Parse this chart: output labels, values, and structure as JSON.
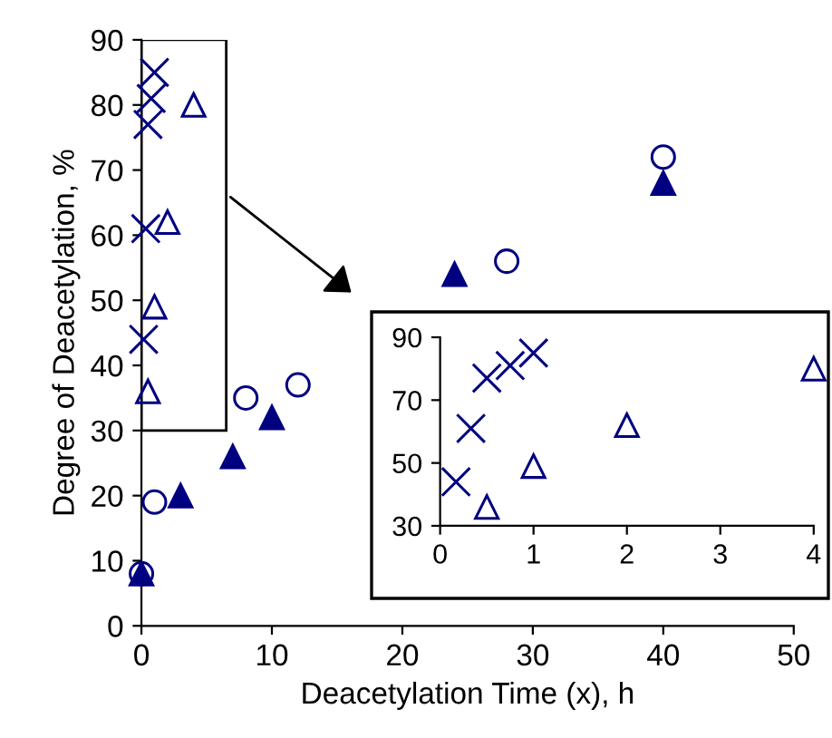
{
  "chart_data": [
    {
      "type": "scatter",
      "xlabel": "Deacetylation Time (x), h",
      "ylabel": "Degree of Deacetylation, %",
      "xlim": [
        0,
        50
      ],
      "ylim": [
        0,
        90
      ],
      "xticks": [
        0,
        10,
        20,
        30,
        40,
        50
      ],
      "yticks": [
        0,
        10,
        20,
        30,
        40,
        50,
        60,
        70,
        80,
        90
      ],
      "grid": false,
      "legend": false,
      "series": [
        {
          "color": "#000080",
          "marker": "cross",
          "x": [
            0.17,
            0.33,
            0.5,
            0.75,
            1
          ],
          "values": [
            44,
            61,
            77,
            81,
            85
          ]
        },
        {
          "color": "#000080",
          "marker": "triangle",
          "x": [
            0.5,
            1,
            2,
            4
          ],
          "values": [
            36,
            49,
            62,
            80
          ]
        },
        {
          "color": "#000080",
          "marker": "circle",
          "x": [
            0,
            1,
            8,
            12,
            28,
            40
          ],
          "values": [
            8,
            19,
            35,
            37,
            56,
            72
          ]
        },
        {
          "color": "#000080",
          "marker": "triangle",
          "x": [
            0,
            3,
            7,
            10,
            24,
            40
          ],
          "values": [
            8,
            20,
            26,
            32,
            54,
            68
          ]
        }
      ]
    },
    {
      "type": "scatter",
      "xlim": [
        0,
        4
      ],
      "ylim": [
        30,
        90
      ],
      "xticks": [
        0,
        1,
        2,
        3,
        4
      ],
      "yticks": [
        30,
        50,
        70,
        90
      ],
      "grid": false,
      "legend": false,
      "series": [
        {
          "color": "#000080",
          "marker": "cross",
          "x": [
            0.17,
            0.33,
            0.5,
            0.75,
            1
          ],
          "values": [
            44,
            61,
            77,
            81,
            85
          ]
        },
        {
          "color": "#000080",
          "marker": "triangle",
          "x": [
            0.5,
            1,
            2,
            4
          ],
          "values": [
            36,
            49,
            62,
            80
          ]
        }
      ]
    }
  ]
}
